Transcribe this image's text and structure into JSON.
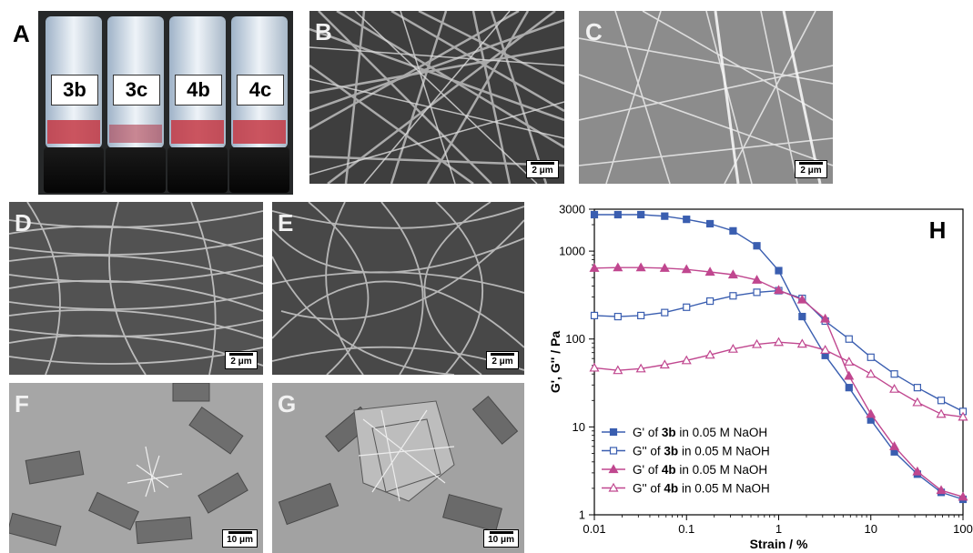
{
  "panels": {
    "a": {
      "label": "A",
      "vials": [
        "3b",
        "3c",
        "4b",
        "4c"
      ]
    },
    "b": {
      "label": "B",
      "scale": "2 μm"
    },
    "c": {
      "label": "C",
      "scale": "2 μm"
    },
    "d": {
      "label": "D",
      "scale": "2 μm"
    },
    "e": {
      "label": "E",
      "scale": "2 μm"
    },
    "f": {
      "label": "F",
      "scale": "10 μm"
    },
    "g": {
      "label": "G",
      "scale": "10 μm"
    },
    "h": {
      "label": "H"
    }
  },
  "chart_data": {
    "type": "line",
    "panel_label": "H",
    "xlabel": "Strain / %",
    "ylabel": "G', G'' / Pa",
    "xscale": "log",
    "yscale": "log",
    "xlim": [
      0.01,
      100
    ],
    "ylim": [
      1,
      3000
    ],
    "xticks": [
      "0.01",
      "0.1",
      "1",
      "10",
      "100"
    ],
    "yticks": [
      "1",
      "10",
      "100",
      "1000",
      "3000"
    ],
    "legend_position": "bottom-left",
    "series": [
      {
        "pre": "G' of ",
        "bold": "3b",
        "post": " in 0.05 M NaOH",
        "color": "#3a5eb0",
        "marker": "square-filled",
        "x": [
          0.01,
          0.018,
          0.032,
          0.058,
          0.1,
          0.18,
          0.32,
          0.58,
          1.0,
          1.8,
          3.2,
          5.8,
          10,
          18,
          32,
          58,
          100
        ],
        "y": [
          2600,
          2600,
          2600,
          2500,
          2300,
          2050,
          1700,
          1150,
          600,
          180,
          65,
          28,
          12,
          5.2,
          2.9,
          1.8,
          1.5
        ]
      },
      {
        "pre": "G'' of ",
        "bold": "3b",
        "post": " in 0.05 M NaOH",
        "color": "#3a5eb0",
        "marker": "square-open",
        "x": [
          0.01,
          0.018,
          0.032,
          0.058,
          0.1,
          0.18,
          0.32,
          0.58,
          1.0,
          1.8,
          3.2,
          5.8,
          10,
          18,
          32,
          58,
          100
        ],
        "y": [
          185,
          180,
          185,
          200,
          230,
          270,
          310,
          340,
          355,
          290,
          160,
          100,
          62,
          40,
          28,
          20,
          15
        ]
      },
      {
        "pre": "G' of ",
        "bold": "4b",
        "post": " in 0.05 M NaOH",
        "color": "#c0478f",
        "marker": "triangle-filled",
        "x": [
          0.01,
          0.018,
          0.032,
          0.058,
          0.1,
          0.18,
          0.32,
          0.58,
          1.0,
          1.8,
          3.2,
          5.8,
          10,
          18,
          32,
          58,
          100
        ],
        "y": [
          640,
          650,
          650,
          640,
          620,
          580,
          540,
          470,
          360,
          280,
          170,
          38,
          14,
          6,
          3.1,
          1.9,
          1.6
        ]
      },
      {
        "pre": "G'' of ",
        "bold": "4b",
        "post": " in 0.05 M NaOH",
        "color": "#c0478f",
        "marker": "triangle-open",
        "x": [
          0.01,
          0.018,
          0.032,
          0.058,
          0.1,
          0.18,
          0.32,
          0.58,
          1.0,
          1.8,
          3.2,
          5.8,
          10,
          18,
          32,
          58,
          100
        ],
        "y": [
          47,
          44,
          46,
          51,
          57,
          66,
          77,
          87,
          92,
          88,
          75,
          55,
          40,
          27,
          19,
          14,
          13
        ]
      }
    ]
  }
}
